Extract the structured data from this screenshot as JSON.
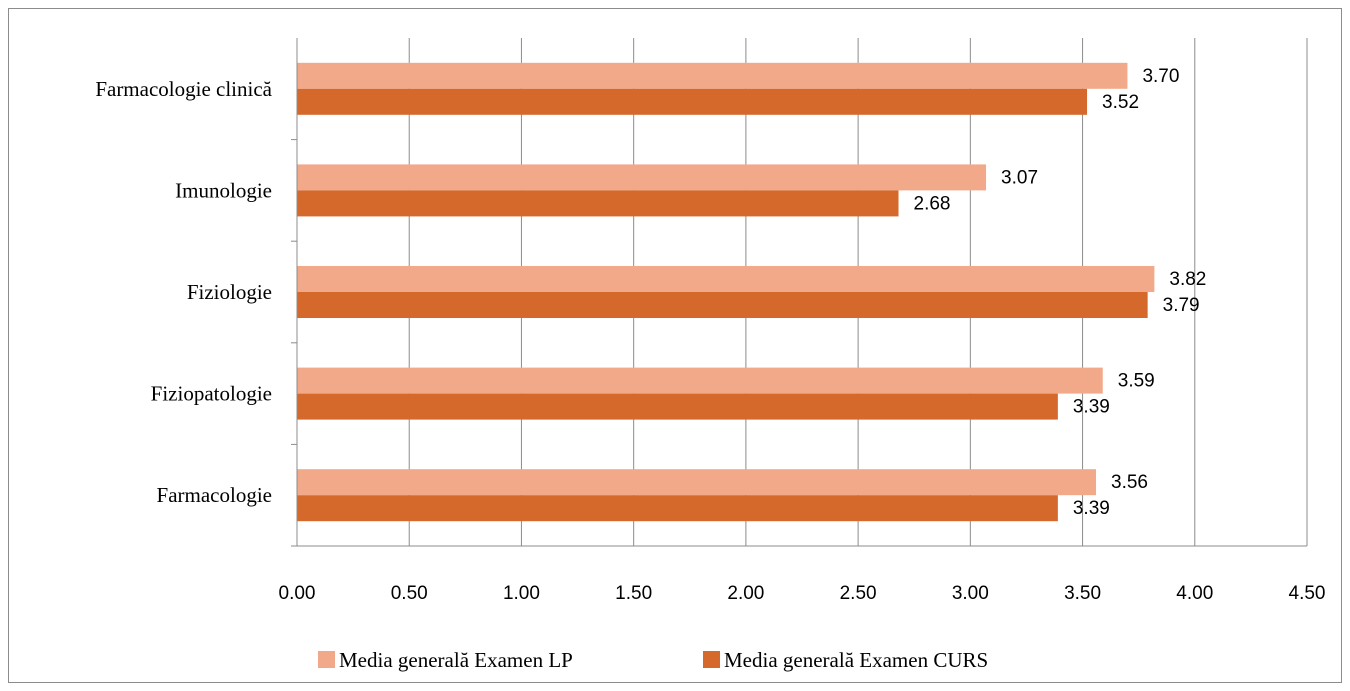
{
  "chart_data": {
    "type": "bar",
    "orientation": "horizontal",
    "categories": [
      "Farmacologie clinică",
      "Imunologie",
      "Fiziologie",
      "Fiziopatologie",
      "Farmacologie"
    ],
    "series": [
      {
        "name": "Media generală Examen LP",
        "color": "#f2a98a",
        "values": [
          3.7,
          3.07,
          3.82,
          3.59,
          3.56
        ],
        "labels": [
          "3.70",
          "3.07",
          "3.82",
          "3.59",
          "3.56"
        ]
      },
      {
        "name": "Media generală Examen CURS",
        "color": "#d4692b",
        "values": [
          3.52,
          2.68,
          3.79,
          3.39,
          3.39
        ],
        "labels": [
          "3.52",
          "2.68",
          "3.79",
          "3.39",
          "3.39"
        ]
      }
    ],
    "xlim": [
      0,
      4.5
    ],
    "xticks": [
      "0.00",
      "0.50",
      "1.00",
      "1.50",
      "2.00",
      "2.50",
      "3.00",
      "3.50",
      "4.00",
      "4.50"
    ],
    "grid": true,
    "legend_position": "bottom",
    "title": "",
    "xlabel": "",
    "ylabel": ""
  }
}
